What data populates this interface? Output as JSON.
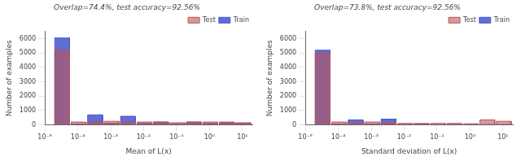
{
  "chart_data": [
    {
      "type": "bar",
      "title": "Overlap=74.4%, test accuracy=92.56%",
      "xlabel": "Mean of L(x)",
      "ylabel": "Number of examples",
      "x": [
        1.9952623149688786e-05,
        6.309573444801929e-05,
        0.00019952623149688788,
        0.000630957344480193,
        0.001995262314968879,
        0.00630957344480193,
        0.0199526231496888,
        0.0630957344480193,
        0.199526231496888,
        0.630957344480193,
        1.99526231496888,
        6.30957344480193
      ],
      "series": [
        {
          "name": "Train",
          "color": "#4455cc",
          "values": [
            6050,
            50,
            700,
            100,
            600,
            100,
            200,
            50,
            200,
            100,
            150,
            100
          ]
        },
        {
          "name": "Test",
          "color": "#bb5555",
          "values": [
            5200,
            200,
            200,
            250,
            200,
            200,
            200,
            150,
            200,
            200,
            200,
            150
          ]
        }
      ],
      "log": "x",
      "xlim": [
        1e-05,
        19.9526231496888
      ],
      "xticks": [
        {
          "value": 1e-05,
          "label": "10⁻⁵"
        },
        {
          "value": 0.0001,
          "label": "10⁻⁴"
        },
        {
          "value": 0.001,
          "label": "10⁻³"
        },
        {
          "value": 0.01,
          "label": "10⁻²"
        },
        {
          "value": 0.1,
          "label": "10⁻¹"
        },
        {
          "value": 1,
          "label": "10⁰"
        },
        {
          "value": 10,
          "label": "10¹"
        }
      ],
      "ylim": [
        0,
        6500
      ],
      "yticks": [
        0,
        1000,
        2000,
        3000,
        4000,
        5000,
        6000
      ],
      "grid": false,
      "legend": "upper right"
    },
    {
      "type": "bar",
      "title": "Overlap=73.8%, test accuracy=92.56%",
      "xlabel": "Standard deviation of L(x)",
      "ylabel": "Number of examples",
      "x": [
        1.9952623149688786e-05,
        6.309573444801929e-05,
        0.00019952623149688788,
        0.000630957344480193,
        0.001995262314968879,
        0.00630957344480193,
        0.0199526231496888,
        0.0630957344480193,
        0.199526231496888,
        0.630957344480193,
        1.99526231496888,
        6.30957344480193
      ],
      "series": [
        {
          "name": "Train",
          "color": "#4455cc",
          "values": [
            5200,
            50,
            350,
            50,
            400,
            30,
            50,
            20,
            30,
            20,
            20,
            20
          ]
        },
        {
          "name": "Test",
          "color": "#bb5555",
          "values": [
            5000,
            200,
            150,
            200,
            150,
            100,
            100,
            100,
            100,
            80,
            350,
            250
          ]
        }
      ],
      "log": "x",
      "xlim": [
        1e-05,
        19.9526231496888
      ],
      "xticks": [
        {
          "value": 1e-05,
          "label": "10⁻⁵"
        },
        {
          "value": 0.0001,
          "label": "10⁻⁴"
        },
        {
          "value": 0.001,
          "label": "10⁻³"
        },
        {
          "value": 0.01,
          "label": "10⁻²"
        },
        {
          "value": 0.1,
          "label": "10⁻¹"
        },
        {
          "value": 1,
          "label": "10⁰"
        },
        {
          "value": 10,
          "label": "10¹"
        }
      ],
      "ylim": [
        0,
        6500
      ],
      "yticks": [
        0,
        1000,
        2000,
        3000,
        4000,
        5000,
        6000
      ],
      "grid": false,
      "legend": "upper right"
    }
  ]
}
